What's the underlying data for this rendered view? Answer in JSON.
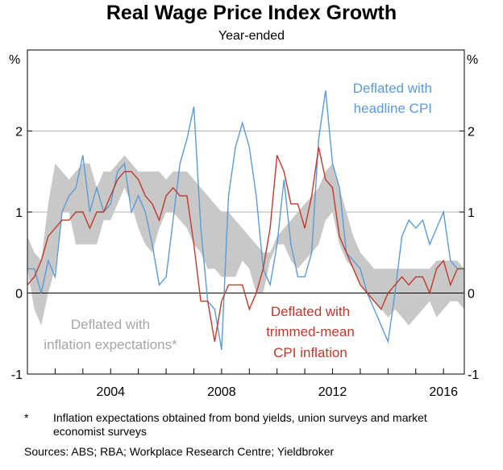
{
  "header": {
    "title": "Real Wage Price Index Growth",
    "subtitle": "Year-ended"
  },
  "chart_data": {
    "type": "line",
    "title": "Real Wage Price Index Growth",
    "subtitle": "Year-ended",
    "ylabel_left": "%",
    "ylabel_right": "%",
    "xlim": [
      2001.0,
      2016.75
    ],
    "ylim": [
      -1,
      3
    ],
    "yticks": [
      "-1",
      "0",
      "1",
      "2"
    ],
    "xticks": [
      {
        "x": 2004,
        "label": "2004"
      },
      {
        "x": 2008,
        "label": "2008"
      },
      {
        "x": 2012,
        "label": "2012"
      },
      {
        "x": 2016,
        "label": "2016"
      }
    ],
    "grid": "horizontal",
    "colors": {
      "headline": "#5b9bd5",
      "trimmed": "#c0392b",
      "band": "#c8c8c8",
      "band_label": "#a6a6a6"
    },
    "annotations": {
      "headline": [
        "Deflated with",
        "headline CPI"
      ],
      "trimmed": [
        "Deflated with",
        "trimmed-mean",
        "CPI inflation"
      ],
      "band": [
        "Deflated with",
        "inflation expectations*"
      ]
    },
    "x": [
      2001.0,
      2001.25,
      2001.5,
      2001.75,
      2002.0,
      2002.25,
      2002.5,
      2002.75,
      2003.0,
      2003.25,
      2003.5,
      2003.75,
      2004.0,
      2004.25,
      2004.5,
      2004.75,
      2005.0,
      2005.25,
      2005.5,
      2005.75,
      2006.0,
      2006.25,
      2006.5,
      2006.75,
      2007.0,
      2007.25,
      2007.5,
      2007.75,
      2008.0,
      2008.25,
      2008.5,
      2008.75,
      2009.0,
      2009.25,
      2009.5,
      2009.75,
      2010.0,
      2010.25,
      2010.5,
      2010.75,
      2011.0,
      2011.25,
      2011.5,
      2011.75,
      2012.0,
      2012.25,
      2012.5,
      2012.75,
      2013.0,
      2013.25,
      2013.5,
      2013.75,
      2014.0,
      2014.25,
      2014.5,
      2014.75,
      2015.0,
      2015.25,
      2015.5,
      2015.75,
      2016.0,
      2016.25,
      2016.5,
      2016.75
    ],
    "series": [
      {
        "name": "Deflated with headline CPI",
        "values": [
          0.3,
          0.3,
          0.0,
          0.4,
          0.2,
          1.0,
          1.2,
          1.3,
          1.7,
          1.0,
          1.3,
          1.0,
          1.1,
          1.5,
          1.6,
          1.0,
          1.2,
          1.0,
          0.6,
          0.1,
          0.2,
          0.9,
          1.6,
          1.9,
          2.3,
          0.8,
          -0.1,
          -0.2,
          -0.7,
          1.2,
          1.8,
          2.1,
          1.8,
          1.2,
          0.3,
          0.1,
          0.6,
          1.4,
          0.6,
          0.2,
          0.2,
          0.5,
          1.9,
          2.5,
          1.6,
          1.3,
          0.5,
          0.4,
          0.3,
          0.0,
          -0.2,
          -0.4,
          -0.6,
          0.0,
          0.7,
          0.9,
          0.8,
          0.9,
          0.6,
          0.8,
          1.0,
          0.4,
          0.3,
          0.3
        ]
      },
      {
        "name": "Deflated with trimmed-mean CPI inflation",
        "values": [
          0.1,
          0.2,
          0.4,
          0.7,
          0.8,
          0.9,
          0.9,
          1.0,
          1.0,
          0.8,
          1.0,
          1.0,
          1.2,
          1.4,
          1.5,
          1.5,
          1.4,
          1.2,
          1.1,
          0.9,
          1.2,
          1.3,
          1.2,
          1.2,
          0.6,
          -0.1,
          -0.1,
          -0.6,
          -0.1,
          0.1,
          0.1,
          0.1,
          -0.2,
          0.0,
          0.3,
          0.8,
          1.7,
          1.5,
          1.1,
          1.1,
          0.8,
          1.2,
          1.8,
          1.4,
          1.3,
          0.7,
          0.5,
          0.3,
          0.1,
          0.0,
          -0.1,
          -0.2,
          0.0,
          0.1,
          0.2,
          0.1,
          0.2,
          0.2,
          0.0,
          0.3,
          0.4,
          0.1,
          0.3,
          0.3
        ]
      },
      {
        "name": "Deflated with inflation expectations*",
        "band": true,
        "lower": [
          0.3,
          -0.2,
          -0.4,
          0.0,
          0.3,
          1.0,
          1.0,
          0.6,
          0.6,
          0.6,
          0.6,
          0.9,
          0.9,
          1.1,
          1.3,
          1.1,
          0.8,
          0.6,
          0.5,
          0.8,
          1.0,
          1.0,
          0.9,
          0.8,
          0.6,
          0.5,
          0.3,
          0.3,
          0.2,
          0.2,
          0.2,
          0.4,
          0.3,
          0.0,
          0.0,
          0.4,
          0.6,
          0.6,
          0.4,
          0.3,
          0.4,
          0.5,
          0.6,
          0.9,
          1.0,
          0.6,
          0.4,
          0.3,
          0.1,
          0.0,
          -0.1,
          -0.2,
          -0.3,
          -0.2,
          -0.3,
          -0.4,
          -0.3,
          -0.2,
          -0.1,
          -0.3,
          -0.2,
          -0.1,
          -0.1,
          -0.2
        ],
        "upper": [
          0.7,
          0.5,
          0.4,
          1.1,
          1.6,
          1.5,
          1.4,
          1.5,
          1.6,
          1.6,
          1.3,
          1.5,
          1.5,
          1.6,
          1.7,
          1.6,
          1.5,
          1.5,
          1.5,
          1.5,
          1.4,
          1.5,
          1.5,
          1.5,
          1.4,
          1.3,
          1.2,
          1.1,
          1.0,
          1.0,
          0.9,
          0.8,
          0.7,
          0.6,
          0.5,
          0.5,
          0.7,
          0.8,
          0.9,
          1.0,
          1.1,
          1.2,
          1.3,
          1.5,
          1.6,
          1.3,
          1.0,
          0.7,
          0.5,
          0.4,
          0.3,
          0.3,
          0.3,
          0.3,
          0.3,
          0.3,
          0.3,
          0.3,
          0.3,
          0.4,
          0.4,
          0.4,
          0.4,
          0.3
        ]
      }
    ]
  },
  "footnote": {
    "marker": "*",
    "text": "Inflation expectations obtained from bond yields, union surveys and market economist surveys"
  },
  "sources": "Sources: ABS; RBA; Workplace Research Centre; Yieldbroker"
}
